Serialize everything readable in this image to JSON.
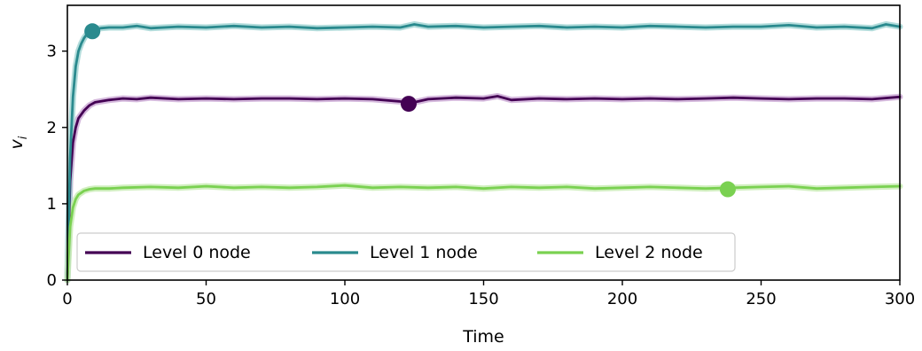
{
  "chart_data": {
    "type": "line",
    "xlabel": "Time",
    "ylabel_main": "v",
    "ylabel_sub": "i",
    "xlim": [
      0,
      300
    ],
    "ylim": [
      0,
      3.6
    ],
    "xticks": [
      0,
      50,
      100,
      150,
      200,
      250,
      300
    ],
    "yticks": [
      0,
      1,
      2,
      3
    ],
    "grid": false,
    "legend_position": "lower-left",
    "series": [
      {
        "name": "Level 0 node",
        "color": "#440154",
        "band_color": "#c9a6d3",
        "x": [
          0,
          1,
          2,
          3,
          4,
          6,
          8,
          10,
          15,
          20,
          25,
          30,
          40,
          50,
          60,
          70,
          80,
          90,
          100,
          110,
          120,
          125,
          130,
          140,
          150,
          155,
          160,
          170,
          180,
          190,
          200,
          210,
          220,
          230,
          240,
          250,
          260,
          270,
          280,
          290,
          300
        ],
        "y": [
          0,
          1.3,
          1.8,
          2.0,
          2.12,
          2.22,
          2.29,
          2.33,
          2.36,
          2.38,
          2.37,
          2.39,
          2.37,
          2.38,
          2.37,
          2.38,
          2.38,
          2.37,
          2.38,
          2.37,
          2.34,
          2.33,
          2.37,
          2.39,
          2.38,
          2.41,
          2.36,
          2.38,
          2.37,
          2.38,
          2.37,
          2.38,
          2.37,
          2.38,
          2.39,
          2.38,
          2.37,
          2.38,
          2.38,
          2.37,
          2.4
        ],
        "marker": {
          "x": 123,
          "y": 2.31
        }
      },
      {
        "name": "Level 1 node",
        "color": "#2a8a8e",
        "band_color": "#9fd3d2",
        "x": [
          0,
          1,
          2,
          3,
          4,
          5,
          6,
          7,
          8,
          10,
          12,
          15,
          20,
          25,
          30,
          40,
          50,
          60,
          70,
          80,
          90,
          100,
          110,
          120,
          125,
          130,
          140,
          150,
          160,
          170,
          180,
          190,
          200,
          210,
          220,
          230,
          240,
          250,
          260,
          270,
          280,
          290,
          295,
          300
        ],
        "y": [
          0,
          1.6,
          2.4,
          2.8,
          3.0,
          3.1,
          3.17,
          3.22,
          3.25,
          3.28,
          3.3,
          3.31,
          3.31,
          3.33,
          3.3,
          3.32,
          3.31,
          3.33,
          3.31,
          3.32,
          3.3,
          3.31,
          3.32,
          3.31,
          3.35,
          3.32,
          3.33,
          3.31,
          3.32,
          3.33,
          3.31,
          3.32,
          3.31,
          3.33,
          3.32,
          3.31,
          3.32,
          3.32,
          3.34,
          3.31,
          3.32,
          3.3,
          3.35,
          3.32
        ],
        "marker": {
          "x": 9,
          "y": 3.26
        }
      },
      {
        "name": "Level 2 node",
        "color": "#7ad151",
        "band_color": "#c6ebb0",
        "x": [
          0,
          1,
          2,
          3,
          4,
          6,
          8,
          10,
          15,
          20,
          30,
          40,
          50,
          60,
          70,
          80,
          90,
          100,
          110,
          120,
          130,
          140,
          150,
          160,
          170,
          180,
          190,
          200,
          210,
          220,
          230,
          240,
          250,
          260,
          270,
          280,
          290,
          300
        ],
        "y": [
          0,
          0.7,
          0.95,
          1.06,
          1.12,
          1.17,
          1.19,
          1.2,
          1.2,
          1.21,
          1.22,
          1.21,
          1.23,
          1.21,
          1.22,
          1.21,
          1.22,
          1.24,
          1.21,
          1.22,
          1.21,
          1.22,
          1.2,
          1.22,
          1.21,
          1.22,
          1.2,
          1.21,
          1.22,
          1.21,
          1.2,
          1.21,
          1.22,
          1.23,
          1.2,
          1.21,
          1.22,
          1.23
        ],
        "marker": {
          "x": 238,
          "y": 1.19
        }
      }
    ]
  }
}
